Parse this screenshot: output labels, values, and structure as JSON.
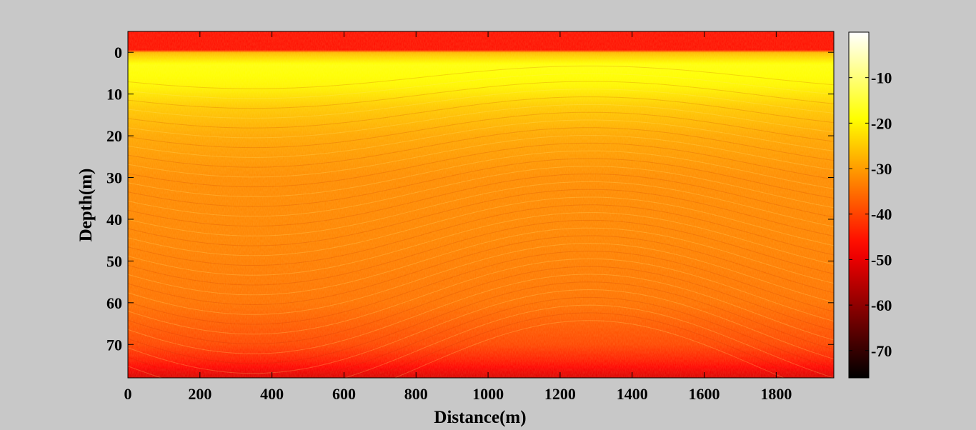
{
  "chart_data": {
    "type": "heatmap",
    "title": "",
    "xlabel": "Distance(m)",
    "ylabel": "Depth(m)",
    "xlim": [
      0,
      1960
    ],
    "ylim": [
      -5,
      78
    ],
    "y_reversed": true,
    "xticks": [
      0,
      200,
      400,
      600,
      800,
      1000,
      1200,
      1400,
      1600,
      1800
    ],
    "yticks": [
      0,
      10,
      20,
      30,
      40,
      50,
      60,
      70
    ],
    "x_tick_labels": [
      "0",
      "200",
      "400",
      "600",
      "800",
      "1000",
      "1200",
      "1400",
      "1600",
      "1800"
    ],
    "y_tick_labels": [
      "0",
      "10",
      "20",
      "30",
      "40",
      "50",
      "60",
      "70"
    ],
    "colorbar": {
      "colormap": "hot",
      "clim": [
        -76,
        0
      ],
      "ticks": [
        -10,
        -20,
        -30,
        -40,
        -50,
        -60,
        -70
      ],
      "tick_labels": [
        "-10",
        "-20",
        "-30",
        "-40",
        "-50",
        "-60",
        "-70"
      ]
    },
    "intensity_profile_db": {
      "depth_m": [
        -5,
        -0.5,
        0,
        3,
        8,
        13,
        20,
        30,
        45,
        60,
        70,
        74,
        78
      ],
      "level_db": [
        -46,
        -46,
        -27,
        -18,
        -20,
        -25,
        -29,
        -32,
        -33,
        -35,
        -40,
        -45,
        -52
      ]
    },
    "grid": false
  }
}
